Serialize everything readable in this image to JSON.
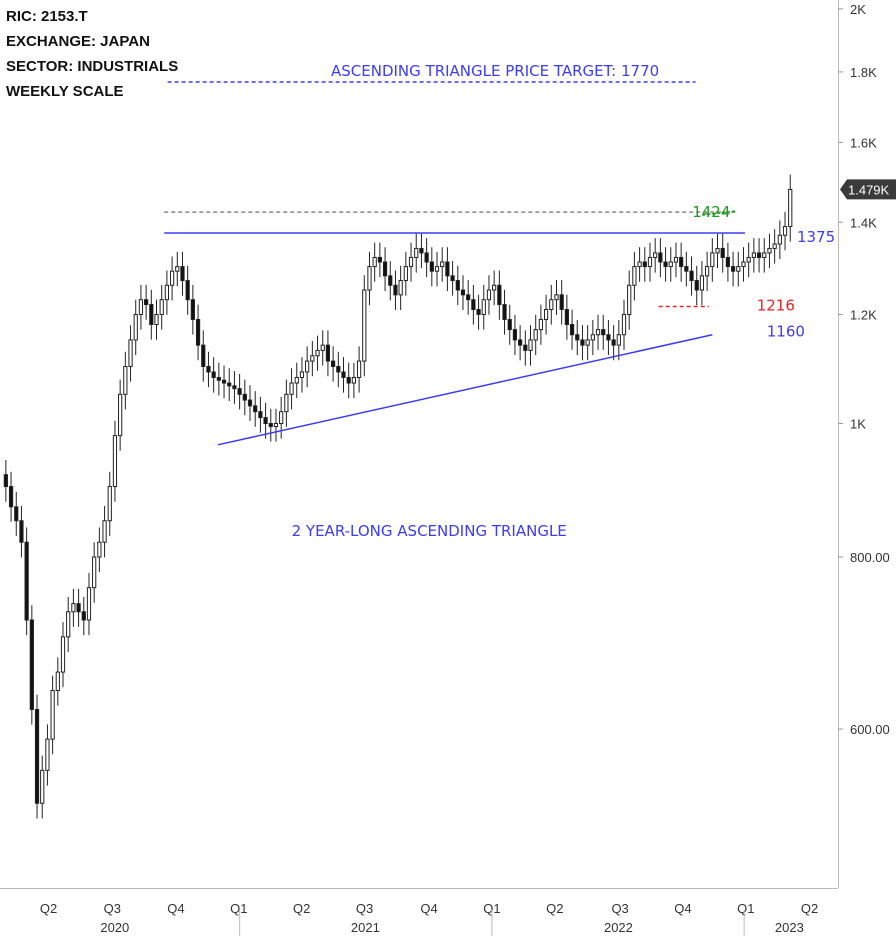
{
  "info": {
    "ric": "RIC:  2153.T",
    "exchange": "EXCHANGE:  JAPAN",
    "sector": "SECTOR:  INDUSTRIALS",
    "scale": "WEEKLY SCALE"
  },
  "chart_data": {
    "type": "candlestick",
    "scale": "log",
    "title": "",
    "ylim": [
      460,
      2030
    ],
    "y_ticks": [
      {
        "value": 600,
        "label": "600.00"
      },
      {
        "value": 800,
        "label": "800.00"
      },
      {
        "value": 1000,
        "label": "1K"
      },
      {
        "value": 1200,
        "label": "1.2K"
      },
      {
        "value": 1400,
        "label": "1.4K"
      },
      {
        "value": 1600,
        "label": "1.6K"
      },
      {
        "value": 1800,
        "label": "1.8K"
      },
      {
        "value": 2000,
        "label": "2K"
      }
    ],
    "x_quarters": [
      "Q2",
      "Q3",
      "Q4",
      "Q1",
      "Q2",
      "Q3",
      "Q4",
      "Q1",
      "Q2",
      "Q3",
      "Q4",
      "Q1",
      "Q2"
    ],
    "x_years": [
      "2020",
      "2021",
      "2022",
      "2023"
    ],
    "last_price_label": "1.479K",
    "last_price": 1479,
    "closes": [
      900,
      870,
      850,
      820,
      720,
      620,
      530,
      560,
      590,
      640,
      660,
      700,
      730,
      740,
      730,
      720,
      760,
      800,
      820,
      850,
      900,
      980,
      1050,
      1100,
      1150,
      1200,
      1230,
      1220,
      1180,
      1200,
      1230,
      1260,
      1290,
      1300,
      1270,
      1230,
      1190,
      1140,
      1100,
      1090,
      1080,
      1075,
      1070,
      1065,
      1060,
      1050,
      1040,
      1030,
      1020,
      1010,
      1000,
      995,
      1000,
      1020,
      1050,
      1070,
      1080,
      1090,
      1110,
      1120,
      1130,
      1140,
      1110,
      1100,
      1090,
      1080,
      1070,
      1080,
      1110,
      1250,
      1300,
      1320,
      1310,
      1280,
      1260,
      1240,
      1270,
      1300,
      1320,
      1340,
      1330,
      1310,
      1290,
      1300,
      1310,
      1280,
      1270,
      1250,
      1240,
      1230,
      1210,
      1200,
      1230,
      1250,
      1260,
      1220,
      1190,
      1170,
      1150,
      1140,
      1130,
      1150,
      1170,
      1190,
      1210,
      1230,
      1240,
      1210,
      1180,
      1160,
      1150,
      1140,
      1150,
      1160,
      1170,
      1160,
      1150,
      1140,
      1160,
      1200,
      1260,
      1300,
      1310,
      1300,
      1320,
      1330,
      1310,
      1300,
      1310,
      1320,
      1300,
      1290,
      1270,
      1250,
      1280,
      1300,
      1330,
      1340,
      1320,
      1300,
      1290,
      1300,
      1310,
      1320,
      1330,
      1320,
      1330,
      1340,
      1350,
      1370,
      1390,
      1479
    ],
    "lines": [
      {
        "name": "resistance",
        "x": [
          0.196,
          0.889
        ],
        "y": [
          1375,
          1375
        ],
        "color": "#3b3bff",
        "dash": false
      },
      {
        "name": "support",
        "x": [
          0.26,
          0.85
        ],
        "y": [
          965,
          1160
        ],
        "color": "#3b3bff",
        "dash": false
      },
      {
        "name": "target",
        "x": [
          0.2,
          0.83
        ],
        "y": [
          1770,
          1770
        ],
        "color": "#3b3bff",
        "dash": true
      },
      {
        "name": "breakout",
        "x": [
          0.196,
          0.878
        ],
        "y": [
          1424,
          1424
        ],
        "color": "#888888",
        "dash": true
      },
      {
        "name": "stop",
        "x": [
          0.786,
          0.846
        ],
        "y": [
          1216,
          1216
        ],
        "color": "#ee2222",
        "dash": true
      }
    ],
    "annotations": [
      {
        "text": "ASCENDING TRIANGLE PRICE TARGET: 1770",
        "color": "#3b3bff"
      },
      {
        "text": "2 YEAR-LONG ASCENDING TRIANGLE",
        "color": "#3b3bff"
      },
      {
        "text": "1424",
        "color": "#1f9b1f"
      },
      {
        "text": "1375",
        "color": "#3b3bff"
      },
      {
        "text": "1216",
        "color": "#ee2222"
      },
      {
        "text": "1160",
        "color": "#3b3bff"
      }
    ]
  }
}
